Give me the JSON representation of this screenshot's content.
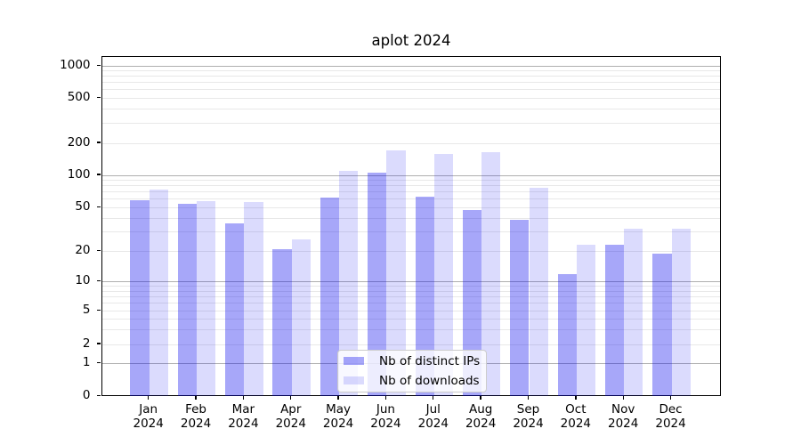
{
  "chart_data": {
    "type": "bar",
    "title": "aplot 2024",
    "categories": [
      "Jan",
      "Feb",
      "Mar",
      "Apr",
      "May",
      "Jun",
      "Jul",
      "Aug",
      "Sep",
      "Oct",
      "Nov",
      "Dec"
    ],
    "year_label": "2024",
    "series": [
      {
        "name": "Nb of distinct IPs",
        "color_base": "#0000ee",
        "color_alpha": 0.345,
        "values": [
          59,
          54,
          36,
          21,
          62,
          105,
          63,
          48,
          39,
          12,
          23,
          19
        ]
      },
      {
        "name": "Nb of downloads",
        "color_base": "#0000ee",
        "color_alpha": 0.14,
        "values": [
          73,
          58,
          56,
          26,
          110,
          170,
          160,
          166,
          76,
          23,
          32,
          32
        ]
      }
    ],
    "xlabel": "",
    "ylabel": "",
    "yscale": "symlog",
    "yticks": [
      0,
      1,
      2,
      5,
      10,
      20,
      50,
      100,
      200,
      500,
      1000
    ],
    "ylim": [
      0,
      1000
    ],
    "grid": "both",
    "grid_major_color": "#b0b0b0",
    "grid_minor_color": "#e8e8e8",
    "legend_position": "lower center",
    "background": "#ffffff"
  }
}
